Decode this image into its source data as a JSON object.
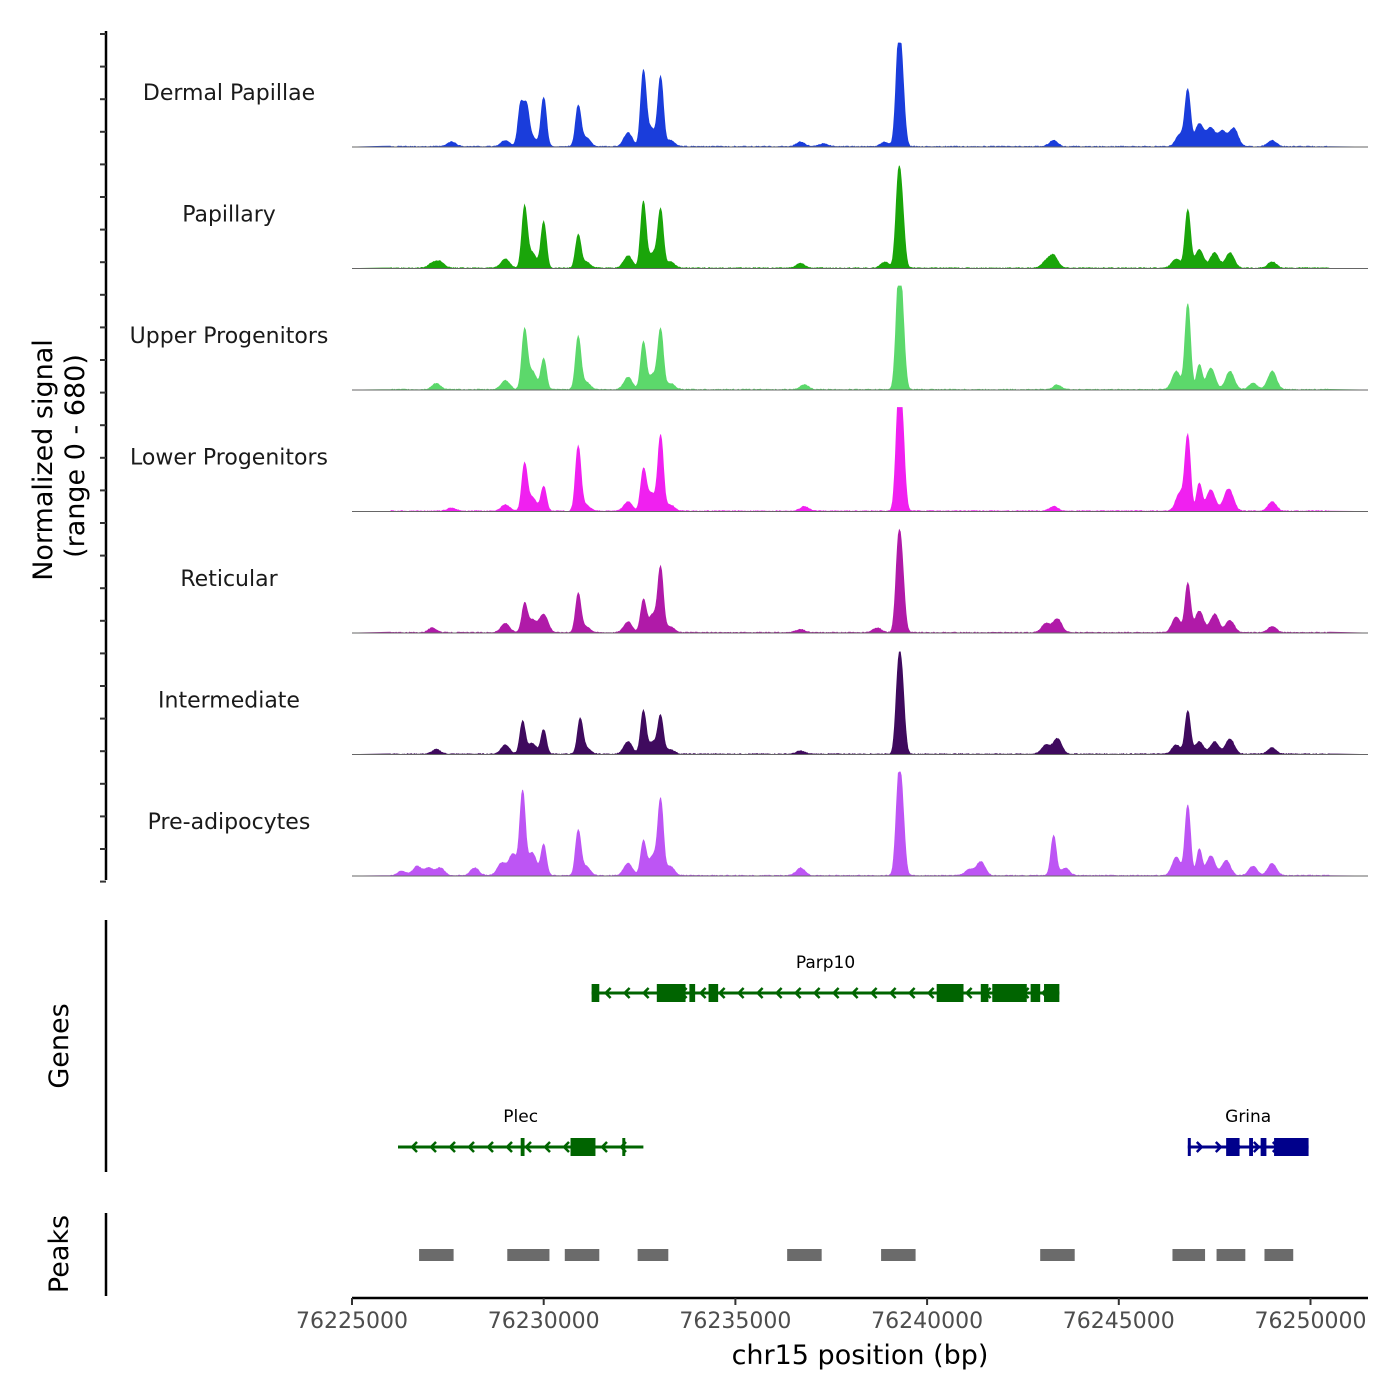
{
  "chart_data": {
    "type": "area",
    "title": "",
    "ylabel_line1": "Normalized signal",
    "ylabel_line2": "(range 0 - 680)",
    "genes_label": "Genes",
    "peaks_label": "Peaks",
    "xlabel": "chr15 position (bp)",
    "xlim": [
      76225000,
      76251500
    ],
    "ylim": [
      0,
      680
    ],
    "x_ticks": [
      76225000,
      76230000,
      76235000,
      76240000,
      76245000,
      76250000
    ],
    "x_tick_labels": [
      "76225000",
      "76230000",
      "76235000",
      "76240000",
      "76245000",
      "76250000"
    ],
    "tracks": [
      {
        "name": "Dermal Papillae",
        "color": "#1a3ddb",
        "peaks": [
          [
            76227600,
            30
          ],
          [
            76229000,
            40
          ],
          [
            76229400,
            270
          ],
          [
            76229550,
            240
          ],
          [
            76229700,
            60
          ],
          [
            76230000,
            320
          ],
          [
            76230900,
            260
          ],
          [
            76231100,
            60
          ],
          [
            76232200,
            90
          ],
          [
            76232600,
            480
          ],
          [
            76232800,
            120
          ],
          [
            76233050,
            450
          ],
          [
            76233300,
            40
          ],
          [
            76236700,
            30
          ],
          [
            76237300,
            20
          ],
          [
            76238900,
            30
          ],
          [
            76239250,
            600
          ],
          [
            76239350,
            360
          ],
          [
            76243300,
            40
          ],
          [
            76246600,
            80
          ],
          [
            76246800,
            360
          ],
          [
            76247100,
            150
          ],
          [
            76247400,
            120
          ],
          [
            76247700,
            100
          ],
          [
            76248000,
            120
          ],
          [
            76249000,
            40
          ]
        ]
      },
      {
        "name": "Papillary",
        "color": "#1aa50a",
        "peaks": [
          [
            76227100,
            30
          ],
          [
            76227300,
            40
          ],
          [
            76229000,
            60
          ],
          [
            76229500,
            390
          ],
          [
            76229700,
            100
          ],
          [
            76230000,
            300
          ],
          [
            76230900,
            210
          ],
          [
            76231100,
            40
          ],
          [
            76232200,
            80
          ],
          [
            76232600,
            430
          ],
          [
            76232850,
            100
          ],
          [
            76233050,
            370
          ],
          [
            76233300,
            40
          ],
          [
            76236700,
            30
          ],
          [
            76238900,
            40
          ],
          [
            76239250,
            530
          ],
          [
            76239350,
            300
          ],
          [
            76243100,
            40
          ],
          [
            76243300,
            80
          ],
          [
            76246500,
            60
          ],
          [
            76246800,
            380
          ],
          [
            76247100,
            120
          ],
          [
            76247500,
            100
          ],
          [
            76247900,
            100
          ],
          [
            76249000,
            40
          ]
        ]
      },
      {
        "name": "Upper Progenitors",
        "color": "#5cd86b",
        "peaks": [
          [
            76227200,
            40
          ],
          [
            76229000,
            60
          ],
          [
            76229500,
            380
          ],
          [
            76229700,
            120
          ],
          [
            76230000,
            200
          ],
          [
            76230900,
            340
          ],
          [
            76231100,
            50
          ],
          [
            76232200,
            80
          ],
          [
            76232600,
            310
          ],
          [
            76232850,
            100
          ],
          [
            76233050,
            380
          ],
          [
            76233300,
            40
          ],
          [
            76236800,
            30
          ],
          [
            76239250,
            610
          ],
          [
            76239350,
            420
          ],
          [
            76243400,
            30
          ],
          [
            76246500,
            120
          ],
          [
            76246800,
            560
          ],
          [
            76247100,
            160
          ],
          [
            76247400,
            140
          ],
          [
            76247900,
            120
          ],
          [
            76248500,
            40
          ],
          [
            76249000,
            120
          ]
        ]
      },
      {
        "name": "Lower Progenitors",
        "color": "#f020f0",
        "peaks": [
          [
            76227600,
            20
          ],
          [
            76229000,
            40
          ],
          [
            76229500,
            300
          ],
          [
            76229700,
            90
          ],
          [
            76230000,
            160
          ],
          [
            76230900,
            420
          ],
          [
            76231100,
            40
          ],
          [
            76232200,
            60
          ],
          [
            76232600,
            260
          ],
          [
            76232800,
            120
          ],
          [
            76233050,
            490
          ],
          [
            76233300,
            40
          ],
          [
            76236800,
            30
          ],
          [
            76239250,
            620
          ],
          [
            76239350,
            480
          ],
          [
            76243300,
            30
          ],
          [
            76246600,
            120
          ],
          [
            76246800,
            480
          ],
          [
            76247100,
            180
          ],
          [
            76247400,
            140
          ],
          [
            76247800,
            60
          ],
          [
            76247900,
            100
          ],
          [
            76249000,
            60
          ]
        ]
      },
      {
        "name": "Reticular",
        "color": "#b01aa8",
        "peaks": [
          [
            76227100,
            30
          ],
          [
            76229000,
            60
          ],
          [
            76229500,
            180
          ],
          [
            76229700,
            80
          ],
          [
            76230000,
            120
          ],
          [
            76230900,
            250
          ],
          [
            76231100,
            40
          ],
          [
            76232200,
            70
          ],
          [
            76232600,
            210
          ],
          [
            76232850,
            120
          ],
          [
            76233050,
            410
          ],
          [
            76233300,
            40
          ],
          [
            76236700,
            20
          ],
          [
            76238700,
            30
          ],
          [
            76239250,
            520
          ],
          [
            76239350,
            330
          ],
          [
            76243100,
            60
          ],
          [
            76243400,
            90
          ],
          [
            76246500,
            100
          ],
          [
            76246800,
            320
          ],
          [
            76247100,
            140
          ],
          [
            76247500,
            120
          ],
          [
            76247900,
            80
          ],
          [
            76249000,
            40
          ]
        ]
      },
      {
        "name": "Intermediate",
        "color": "#3f0a5e",
        "peaks": [
          [
            76227200,
            30
          ],
          [
            76229000,
            60
          ],
          [
            76229450,
            210
          ],
          [
            76229700,
            70
          ],
          [
            76230000,
            160
          ],
          [
            76230950,
            220
          ],
          [
            76231100,
            40
          ],
          [
            76232200,
            80
          ],
          [
            76232600,
            280
          ],
          [
            76232850,
            80
          ],
          [
            76233050,
            240
          ],
          [
            76233300,
            30
          ],
          [
            76236700,
            20
          ],
          [
            76239250,
            480
          ],
          [
            76239350,
            380
          ],
          [
            76243100,
            60
          ],
          [
            76243400,
            100
          ],
          [
            76246500,
            60
          ],
          [
            76246800,
            280
          ],
          [
            76247100,
            80
          ],
          [
            76247500,
            80
          ],
          [
            76247900,
            100
          ],
          [
            76249000,
            40
          ]
        ]
      },
      {
        "name": "Pre-adipocytes",
        "color": "#bd55f4",
        "peaks": [
          [
            76226300,
            30
          ],
          [
            76226700,
            60
          ],
          [
            76227000,
            50
          ],
          [
            76227300,
            50
          ],
          [
            76228200,
            50
          ],
          [
            76228900,
            80
          ],
          [
            76229200,
            140
          ],
          [
            76229450,
            540
          ],
          [
            76229700,
            150
          ],
          [
            76230000,
            200
          ],
          [
            76230900,
            290
          ],
          [
            76231100,
            60
          ],
          [
            76232200,
            80
          ],
          [
            76232600,
            220
          ],
          [
            76232850,
            130
          ],
          [
            76233050,
            480
          ],
          [
            76233300,
            60
          ],
          [
            76236700,
            50
          ],
          [
            76239250,
            530
          ],
          [
            76239350,
            380
          ],
          [
            76241100,
            40
          ],
          [
            76241400,
            90
          ],
          [
            76243300,
            260
          ],
          [
            76243600,
            50
          ],
          [
            76246500,
            120
          ],
          [
            76246800,
            460
          ],
          [
            76247100,
            170
          ],
          [
            76247400,
            130
          ],
          [
            76247800,
            100
          ],
          [
            76248500,
            60
          ],
          [
            76249000,
            80
          ]
        ]
      }
    ],
    "genes": [
      {
        "name": "Parp10",
        "color": "#006400",
        "row": 1,
        "strand": "-",
        "start": 76231250,
        "end": 76243450,
        "exons": [
          [
            76231250,
            76231450
          ],
          [
            76232950,
            76233700
          ],
          [
            76233800,
            76233950
          ],
          [
            76234300,
            76234550
          ],
          [
            76240250,
            76240950
          ],
          [
            76241400,
            76241600
          ],
          [
            76241700,
            76242600
          ],
          [
            76242700,
            76242950
          ],
          [
            76243050,
            76243450
          ]
        ]
      },
      {
        "name": "Plec",
        "color": "#006400",
        "row": 2,
        "strand": "-",
        "start": 76226200,
        "end": 76232600,
        "exons": [
          [
            76229400,
            76229500
          ],
          [
            76230700,
            76231350
          ],
          [
            76232050,
            76232100
          ]
        ]
      },
      {
        "name": "Grina",
        "color": "#00008b",
        "row": 2,
        "strand": "+",
        "start": 76246800,
        "end": 76249950,
        "exons": [
          [
            76246800,
            76246850
          ],
          [
            76247800,
            76248150
          ],
          [
            76248400,
            76248500
          ],
          [
            76248700,
            76248850
          ],
          [
            76249050,
            76249950
          ]
        ]
      }
    ],
    "peak_regions": [
      [
        76226750,
        76227650
      ],
      [
        76229050,
        76230150
      ],
      [
        76230550,
        76231450
      ],
      [
        76232450,
        76233250
      ],
      [
        76236350,
        76237250
      ],
      [
        76238800,
        76239700
      ],
      [
        76242950,
        76243850
      ],
      [
        76246400,
        76247250
      ],
      [
        76247550,
        76248300
      ],
      [
        76248800,
        76249550
      ]
    ]
  }
}
